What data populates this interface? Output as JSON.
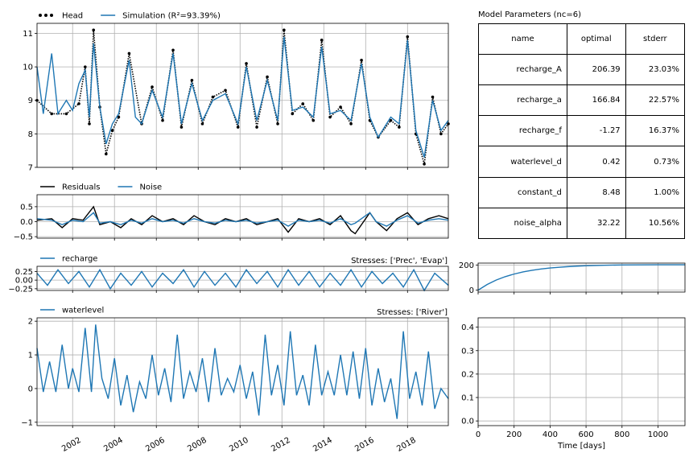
{
  "colors": {
    "head": "#000000",
    "simulation": "#1f77b4",
    "grid": "#b0b0b0"
  },
  "chart_data": [
    {
      "id": "fit",
      "type": "line",
      "legend": [
        {
          "label": "Head",
          "style": "dots"
        },
        {
          "label": "Simulation (R²=93.39%)",
          "style": "line"
        }
      ],
      "ylim": [
        7,
        11.3
      ],
      "yticks": [
        7,
        8,
        9,
        10,
        11
      ],
      "xlim": [
        2000.3,
        2019.95
      ],
      "series": [
        {
          "name": "Head",
          "style": "dots",
          "x": [
            2000.3,
            2001.0,
            2001.7,
            2002.3,
            2002.6,
            2002.8,
            2003.0,
            2003.3,
            2003.6,
            2003.9,
            2004.2,
            2004.7,
            2005.3,
            2005.8,
            2006.3,
            2006.8,
            2007.2,
            2007.7,
            2008.2,
            2008.7,
            2009.3,
            2009.9,
            2010.3,
            2010.8,
            2011.3,
            2011.8,
            2012.1,
            2012.5,
            2013.0,
            2013.5,
            2013.9,
            2014.3,
            2014.8,
            2015.3,
            2015.8,
            2016.2,
            2016.6,
            2017.2,
            2017.6,
            2018.0,
            2018.4,
            2018.8,
            2019.2,
            2019.6,
            2019.95
          ],
          "y": [
            9.0,
            8.6,
            8.6,
            8.9,
            10.0,
            8.3,
            11.1,
            8.8,
            7.4,
            8.1,
            8.5,
            10.4,
            8.3,
            9.4,
            8.4,
            10.5,
            8.2,
            9.6,
            8.3,
            9.1,
            9.3,
            8.2,
            10.1,
            8.2,
            9.7,
            8.3,
            11.1,
            8.6,
            8.9,
            8.4,
            10.8,
            8.5,
            8.8,
            8.3,
            10.2,
            8.4,
            7.9,
            8.4,
            8.2,
            10.9,
            8.0,
            7.1,
            9.1,
            8.0,
            8.3
          ]
        },
        {
          "name": "Simulation",
          "style": "line",
          "x": [
            2000.3,
            2000.6,
            2001.0,
            2001.3,
            2001.7,
            2002.0,
            2002.3,
            2002.6,
            2002.8,
            2003.0,
            2003.3,
            2003.6,
            2003.9,
            2004.2,
            2004.7,
            2005.0,
            2005.3,
            2005.8,
            2006.3,
            2006.8,
            2007.2,
            2007.7,
            2008.2,
            2008.7,
            2009.3,
            2009.9,
            2010.3,
            2010.8,
            2011.3,
            2011.8,
            2012.1,
            2012.5,
            2013.0,
            2013.5,
            2013.9,
            2014.3,
            2014.8,
            2015.3,
            2015.8,
            2016.2,
            2016.6,
            2017.2,
            2017.6,
            2018.0,
            2018.4,
            2018.8,
            2019.2,
            2019.6,
            2019.95
          ],
          "y": [
            10.0,
            8.6,
            10.4,
            8.6,
            9.0,
            8.7,
            9.5,
            9.9,
            8.5,
            10.7,
            8.8,
            7.7,
            8.3,
            8.6,
            10.2,
            8.5,
            8.3,
            9.3,
            8.5,
            10.4,
            8.3,
            9.5,
            8.4,
            9.0,
            9.2,
            8.3,
            10.0,
            8.4,
            9.6,
            8.4,
            10.9,
            8.7,
            8.8,
            8.5,
            10.6,
            8.6,
            8.7,
            8.4,
            10.1,
            8.5,
            7.9,
            8.5,
            8.3,
            10.8,
            8.1,
            7.3,
            9.0,
            8.1,
            8.4
          ]
        }
      ]
    },
    {
      "id": "residuals",
      "type": "line",
      "legend": [
        {
          "label": "Residuals",
          "style": "line"
        },
        {
          "label": "Noise",
          "style": "line"
        }
      ],
      "ylim": [
        -0.55,
        0.9
      ],
      "yticks": [
        -0.5,
        0.0,
        0.5
      ],
      "ytick_labels": [
        "−0.5",
        "0.0",
        "0.5"
      ],
      "xlim": [
        2000.3,
        2019.95
      ],
      "series": [
        {
          "name": "Residuals",
          "x": [
            2000.3,
            2001.0,
            2001.5,
            2002.0,
            2002.5,
            2003.0,
            2003.3,
            2003.8,
            2004.3,
            2004.8,
            2005.3,
            2005.8,
            2006.3,
            2006.8,
            2007.3,
            2007.8,
            2008.3,
            2008.8,
            2009.3,
            2009.8,
            2010.3,
            2010.8,
            2011.3,
            2011.8,
            2012.3,
            2012.8,
            2013.3,
            2013.8,
            2014.3,
            2014.8,
            2015.3,
            2015.5,
            2016.2,
            2016.5,
            2017.0,
            2017.5,
            2018.0,
            2018.5,
            2019.0,
            2019.5,
            2019.95
          ],
          "y": [
            0.05,
            0.1,
            -0.2,
            0.1,
            0.05,
            0.5,
            -0.1,
            0.0,
            -0.2,
            0.1,
            -0.1,
            0.2,
            0.0,
            0.1,
            -0.1,
            0.2,
            0.0,
            -0.1,
            0.1,
            0.0,
            0.1,
            -0.1,
            0.0,
            0.1,
            -0.35,
            0.1,
            0.0,
            0.1,
            -0.1,
            0.2,
            -0.3,
            -0.4,
            0.3,
            0.0,
            -0.3,
            0.1,
            0.3,
            -0.1,
            0.1,
            0.2,
            0.1
          ]
        },
        {
          "name": "Noise",
          "x": [
            2000.3,
            2001.0,
            2001.5,
            2002.0,
            2002.5,
            2003.0,
            2003.3,
            2003.8,
            2004.3,
            2004.8,
            2005.3,
            2005.8,
            2006.3,
            2006.8,
            2007.3,
            2007.8,
            2008.3,
            2008.8,
            2009.3,
            2009.8,
            2010.3,
            2010.8,
            2011.3,
            2011.8,
            2012.3,
            2012.8,
            2013.3,
            2013.8,
            2014.3,
            2014.8,
            2015.3,
            2015.5,
            2016.2,
            2016.5,
            2017.0,
            2017.5,
            2018.0,
            2018.5,
            2019.0,
            2019.5,
            2019.95
          ],
          "y": [
            0.1,
            0.05,
            -0.1,
            0.05,
            0.0,
            0.3,
            -0.05,
            0.0,
            -0.1,
            0.05,
            -0.05,
            0.1,
            0.0,
            0.05,
            -0.05,
            0.1,
            0.0,
            -0.05,
            0.05,
            0.0,
            0.05,
            -0.05,
            0.0,
            0.05,
            -0.15,
            0.05,
            0.0,
            0.05,
            -0.05,
            0.1,
            -0.1,
            -0.05,
            0.3,
            0.0,
            -0.15,
            0.05,
            0.2,
            -0.05,
            0.05,
            0.1,
            0.05
          ]
        }
      ]
    },
    {
      "id": "recharge",
      "type": "line",
      "legend": [
        {
          "label": "recharge",
          "style": "line"
        }
      ],
      "annotation": "Stresses: ['Prec', 'Evap']",
      "ylim": [
        -0.3,
        0.4
      ],
      "yticks": [
        -0.25,
        0.0,
        0.25
      ],
      "ytick_labels": [
        "−0.25",
        "0.00",
        "0.25"
      ],
      "xlim": [
        2000.3,
        2019.95
      ],
      "series": [
        {
          "name": "recharge",
          "x": [
            2000.3,
            2000.8,
            2001.3,
            2001.8,
            2002.3,
            2002.8,
            2003.3,
            2003.8,
            2004.3,
            2004.8,
            2005.3,
            2005.8,
            2006.3,
            2006.8,
            2007.3,
            2007.8,
            2008.3,
            2008.8,
            2009.3,
            2009.8,
            2010.3,
            2010.8,
            2011.3,
            2011.8,
            2012.3,
            2012.8,
            2013.3,
            2013.8,
            2014.3,
            2014.8,
            2015.3,
            2015.8,
            2016.3,
            2016.8,
            2017.3,
            2017.8,
            2018.3,
            2018.8,
            2019.3,
            2019.95
          ],
          "y": [
            0.2,
            -0.15,
            0.3,
            -0.1,
            0.25,
            -0.2,
            0.3,
            -0.25,
            0.2,
            -0.15,
            0.25,
            -0.2,
            0.2,
            -0.1,
            0.3,
            -0.2,
            0.25,
            -0.15,
            0.2,
            -0.2,
            0.3,
            -0.1,
            0.25,
            -0.2,
            0.3,
            -0.15,
            0.25,
            -0.2,
            0.2,
            -0.15,
            0.3,
            -0.2,
            0.25,
            -0.1,
            0.2,
            -0.2,
            0.3,
            -0.3,
            0.2,
            -0.15
          ]
        }
      ]
    },
    {
      "id": "recharge_response",
      "type": "line",
      "ylim": [
        -15,
        215
      ],
      "yticks": [
        0,
        200
      ],
      "xlim": [
        0,
        1150
      ],
      "series": [
        {
          "name": "recharge step response",
          "x": [
            0,
            50,
            100,
            150,
            200,
            250,
            300,
            350,
            400,
            450,
            500,
            550,
            600,
            700,
            800,
            900,
            1000,
            1150
          ],
          "y": [
            0,
            45,
            80,
            107,
            128,
            145,
            158,
            168,
            176,
            182,
            187,
            191,
            194,
            198,
            200,
            201,
            202,
            202
          ]
        }
      ]
    },
    {
      "id": "waterlevel",
      "type": "line",
      "legend": [
        {
          "label": "waterlevel",
          "style": "line"
        }
      ],
      "annotation": "Stresses: ['River']",
      "ylim": [
        -1.1,
        2.1
      ],
      "yticks": [
        -1,
        0,
        1,
        2
      ],
      "ytick_labels": [
        "−1",
        "0",
        "1",
        "2"
      ],
      "xlim": [
        2000.3,
        2019.95
      ],
      "xticks": [
        2002,
        2004,
        2006,
        2008,
        2010,
        2012,
        2014,
        2016,
        2018
      ],
      "series": [
        {
          "name": "waterlevel",
          "x": [
            2000.3,
            2000.6,
            2000.9,
            2001.2,
            2001.5,
            2001.8,
            2002.0,
            2002.3,
            2002.6,
            2002.9,
            2003.1,
            2003.4,
            2003.7,
            2004.0,
            2004.3,
            2004.6,
            2004.9,
            2005.2,
            2005.5,
            2005.8,
            2006.1,
            2006.4,
            2006.7,
            2007.0,
            2007.3,
            2007.6,
            2007.9,
            2008.2,
            2008.5,
            2008.8,
            2009.1,
            2009.4,
            2009.7,
            2010.0,
            2010.3,
            2010.6,
            2010.9,
            2011.2,
            2011.5,
            2011.8,
            2012.1,
            2012.4,
            2012.7,
            2013.0,
            2013.3,
            2013.6,
            2013.9,
            2014.2,
            2014.5,
            2014.8,
            2015.1,
            2015.4,
            2015.7,
            2016.0,
            2016.3,
            2016.6,
            2016.9,
            2017.2,
            2017.5,
            2017.8,
            2018.1,
            2018.4,
            2018.7,
            2019.0,
            2019.3,
            2019.6,
            2019.95
          ],
          "y": [
            1.2,
            -0.1,
            0.8,
            -0.1,
            1.3,
            0.0,
            0.6,
            -0.1,
            1.8,
            -0.1,
            1.9,
            0.3,
            -0.3,
            0.9,
            -0.5,
            0.4,
            -0.7,
            0.2,
            -0.3,
            1.0,
            -0.2,
            0.6,
            -0.4,
            1.6,
            -0.3,
            0.5,
            -0.1,
            0.9,
            -0.4,
            1.2,
            -0.2,
            0.3,
            -0.1,
            0.7,
            -0.3,
            0.5,
            -0.8,
            1.6,
            -0.2,
            0.7,
            -0.5,
            1.7,
            -0.2,
            0.4,
            -0.5,
            1.3,
            -0.2,
            0.5,
            -0.2,
            1.0,
            -0.2,
            1.1,
            -0.3,
            1.2,
            -0.5,
            0.6,
            -0.4,
            0.3,
            -0.9,
            1.7,
            -0.3,
            0.5,
            -0.5,
            1.1,
            -0.6,
            0.0,
            -0.3
          ]
        }
      ]
    },
    {
      "id": "waterlevel_response",
      "type": "line",
      "ylim": [
        -0.02,
        0.44
      ],
      "yticks": [
        0.0,
        0.1,
        0.2,
        0.3,
        0.4
      ],
      "ytick_labels": [
        "0.0",
        "0.1",
        "0.2",
        "0.3",
        "0.4"
      ],
      "xlim": [
        0,
        1150
      ],
      "xticks": [
        0,
        200,
        400,
        600,
        800,
        1000
      ],
      "xlabel": "Time [days]",
      "series": []
    }
  ],
  "parameters": {
    "title": "Model Parameters (nc=6)",
    "columns": [
      "name",
      "optimal",
      "stderr"
    ],
    "rows": [
      {
        "name": "recharge_A",
        "optimal": "206.39",
        "stderr": "23.03%"
      },
      {
        "name": "recharge_a",
        "optimal": "166.84",
        "stderr": "22.57%"
      },
      {
        "name": "recharge_f",
        "optimal": "-1.27",
        "stderr": "16.37%"
      },
      {
        "name": "waterlevel_d",
        "optimal": "0.42",
        "stderr": "0.73%"
      },
      {
        "name": "constant_d",
        "optimal": "8.48",
        "stderr": "1.00%"
      },
      {
        "name": "noise_alpha",
        "optimal": "32.22",
        "stderr": "10.56%"
      }
    ]
  }
}
